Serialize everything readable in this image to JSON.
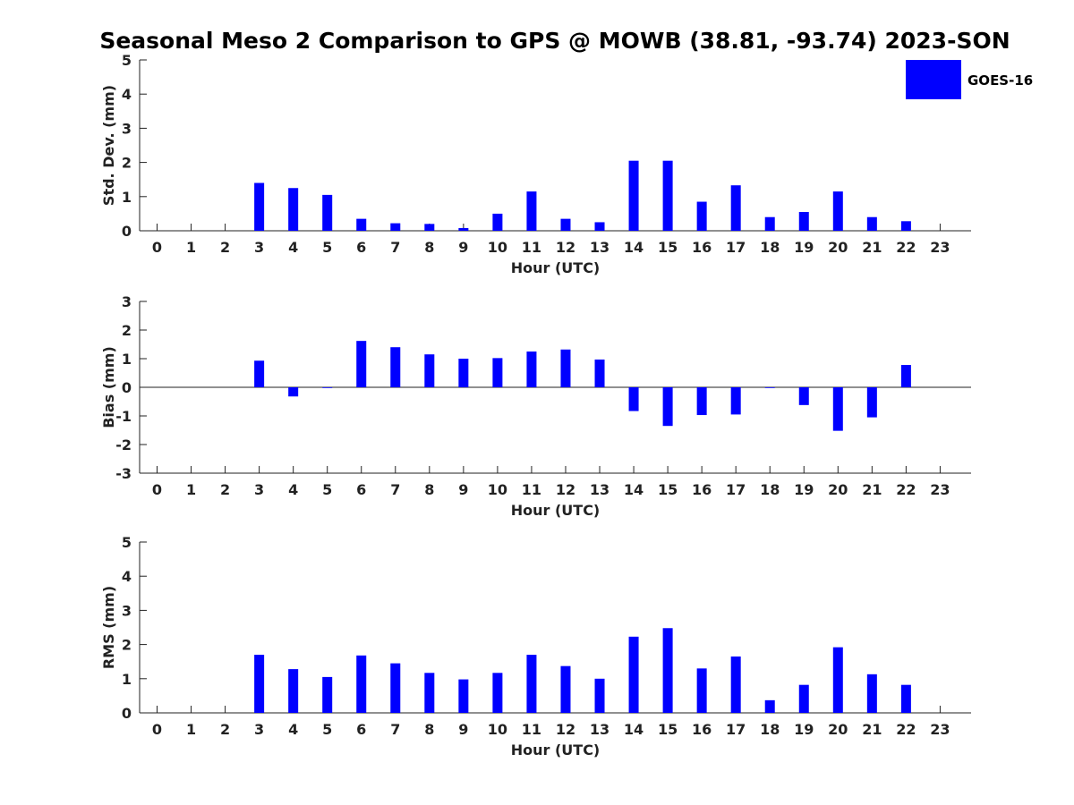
{
  "title": "Seasonal Meso 2 Comparison to GPS @ MOWB (38.81, -93.74) 2023-SON",
  "legend": {
    "label": "GOES-16",
    "color": "#0000ff",
    "placement": "top-right"
  },
  "chart_data": [
    {
      "type": "bar",
      "ylabel": "Std. Dev. (mm)",
      "xlabel": "Hour (UTC)",
      "ylim": [
        0,
        5
      ],
      "yticks": [
        "0",
        "1",
        "2",
        "3",
        "4",
        "5"
      ],
      "categories": [
        "0",
        "1",
        "2",
        "3",
        "4",
        "5",
        "6",
        "7",
        "8",
        "9",
        "10",
        "11",
        "12",
        "13",
        "14",
        "15",
        "16",
        "17",
        "18",
        "19",
        "20",
        "21",
        "22",
        "23"
      ],
      "series": [
        {
          "name": "GOES-16",
          "values": [
            null,
            null,
            null,
            1.4,
            1.25,
            1.05,
            0.35,
            0.22,
            0.2,
            0.08,
            0.5,
            1.15,
            0.35,
            0.25,
            2.05,
            2.05,
            0.85,
            1.33,
            0.4,
            0.55,
            1.15,
            0.4,
            0.28,
            null
          ]
        }
      ]
    },
    {
      "type": "bar",
      "ylabel": "Bias (mm)",
      "xlabel": "Hour (UTC)",
      "ylim": [
        -3,
        3
      ],
      "yticks": [
        "-3",
        "-2",
        "-1",
        "0",
        "1",
        "2",
        "3"
      ],
      "categories": [
        "0",
        "1",
        "2",
        "3",
        "4",
        "5",
        "6",
        "7",
        "8",
        "9",
        "10",
        "11",
        "12",
        "13",
        "14",
        "15",
        "16",
        "17",
        "18",
        "19",
        "20",
        "21",
        "22",
        "23"
      ],
      "series": [
        {
          "name": "GOES-16",
          "values": [
            null,
            null,
            null,
            0.93,
            -0.32,
            -0.02,
            1.62,
            1.4,
            1.15,
            1.0,
            1.02,
            1.25,
            1.32,
            0.97,
            -0.83,
            -1.35,
            -0.97,
            -0.95,
            -0.02,
            -0.62,
            -1.52,
            -1.05,
            0.78,
            null
          ]
        }
      ]
    },
    {
      "type": "bar",
      "ylabel": "RMS (mm)",
      "xlabel": "Hour (UTC)",
      "ylim": [
        0,
        5
      ],
      "yticks": [
        "0",
        "1",
        "2",
        "3",
        "4",
        "5"
      ],
      "categories": [
        "0",
        "1",
        "2",
        "3",
        "4",
        "5",
        "6",
        "7",
        "8",
        "9",
        "10",
        "11",
        "12",
        "13",
        "14",
        "15",
        "16",
        "17",
        "18",
        "19",
        "20",
        "21",
        "22",
        "23"
      ],
      "series": [
        {
          "name": "GOES-16",
          "values": [
            null,
            null,
            null,
            1.7,
            1.28,
            1.05,
            1.68,
            1.45,
            1.17,
            0.98,
            1.17,
            1.7,
            1.37,
            1.0,
            2.23,
            2.48,
            1.3,
            1.65,
            0.37,
            0.82,
            1.92,
            1.13,
            0.82,
            null
          ]
        }
      ]
    }
  ]
}
